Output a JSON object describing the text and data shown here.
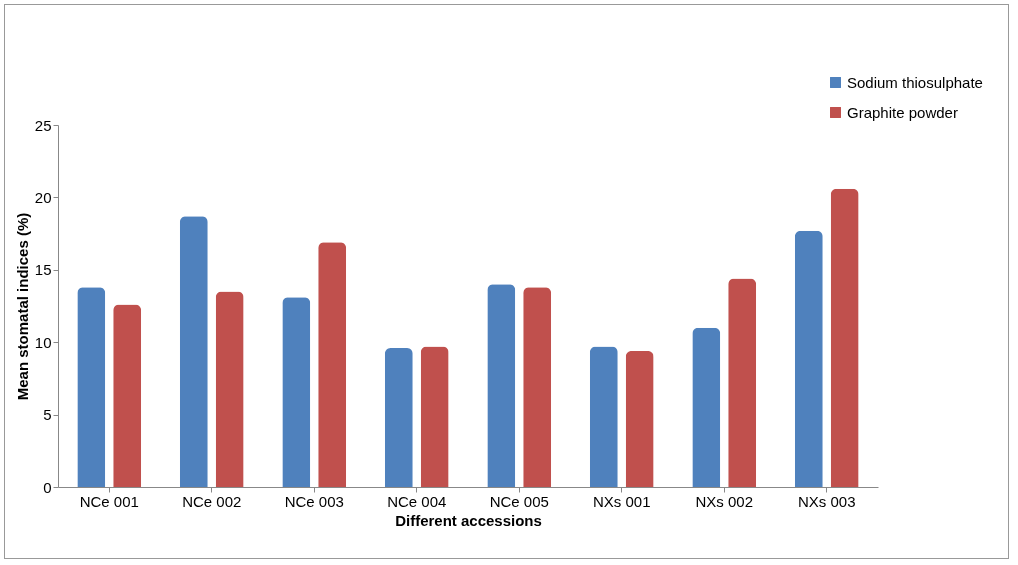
{
  "chart_data": {
    "type": "bar",
    "xlabel": "Different accessions",
    "ylabel": "Mean stomatal indices (%)",
    "categories": [
      "NCe 001",
      "NCe 002",
      "NCe 003",
      "NCe 004",
      "NCe 005",
      "NXs 001",
      "NXs 002",
      "NXs 003"
    ],
    "series": [
      {
        "name": "Sodium thiosulphate",
        "color": "#4f81bd",
        "values": [
          13.8,
          18.7,
          13.1,
          9.6,
          14.0,
          9.7,
          11.0,
          17.7
        ]
      },
      {
        "name": "Graphite powder",
        "color": "#c0504d",
        "values": [
          12.6,
          13.5,
          16.9,
          9.7,
          13.8,
          9.4,
          14.4,
          20.6
        ]
      }
    ],
    "ylim": [
      0,
      25
    ],
    "yticks": [
      0,
      5,
      10,
      15,
      20,
      25
    ],
    "grid": false,
    "legend": "top right"
  }
}
